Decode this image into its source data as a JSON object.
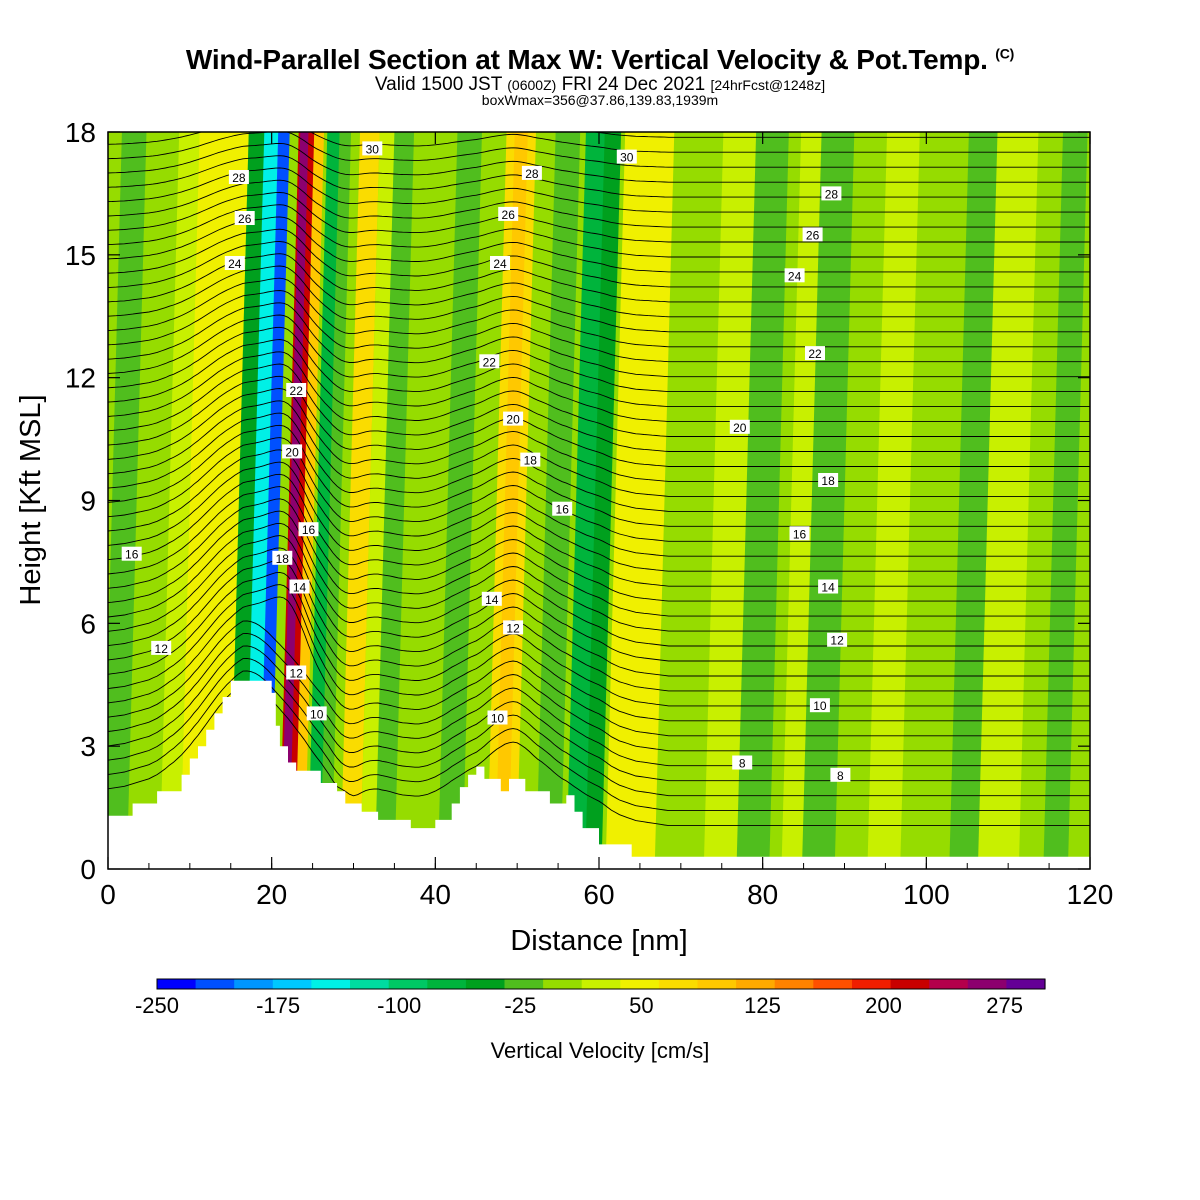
{
  "title": "Wind-Parallel Section at Max W: Vertical Velocity & Pot.Temp.",
  "title_mark": "(C)",
  "subtitle_a": "Valid 1500 JST",
  "subtitle_b": "(0600Z)",
  "subtitle_c": "FRI 24 Dec 2021",
  "subtitle_d": "[24hrFcst@1248z]",
  "subtitle2": "boxWmax=356@37.86,139.83,1939m",
  "chart_data": {
    "type": "heatmap",
    "xlabel": "Distance [nm]",
    "ylabel": "Height [Kft MSL]",
    "xlim": [
      0,
      120
    ],
    "ylim": [
      0,
      18
    ],
    "xticks": [
      "0",
      "20",
      "40",
      "60",
      "80",
      "100",
      "120"
    ],
    "yticks": [
      "0",
      "3",
      "6",
      "9",
      "12",
      "15",
      "18"
    ],
    "colorbar": {
      "label": "Vertical Velocity [cm/s]",
      "ticks": [
        "-250",
        "-175",
        "-100",
        "-25",
        "50",
        "125",
        "200",
        "275"
      ],
      "min": -250,
      "max": 300,
      "step": 25,
      "colors": [
        "#0000ff",
        "#0050ff",
        "#0096ff",
        "#00c8ff",
        "#00f0e6",
        "#00dca0",
        "#00c864",
        "#00b43c",
        "#00a01e",
        "#50be1e",
        "#96dc00",
        "#c8f000",
        "#f0f000",
        "#fadc00",
        "#ffc800",
        "#ffaa00",
        "#ff8200",
        "#ff5000",
        "#f01e00",
        "#c80000",
        "#b4004b",
        "#8c006e",
        "#640096"
      ]
    },
    "background_value": 0,
    "terrain_kft": [
      [
        0,
        1.3
      ],
      [
        3,
        1.3
      ],
      [
        3,
        1.6
      ],
      [
        6,
        1.6
      ],
      [
        6,
        1.9
      ],
      [
        9,
        1.9
      ],
      [
        9,
        2.3
      ],
      [
        10,
        2.3
      ],
      [
        10,
        2.7
      ],
      [
        11,
        2.7
      ],
      [
        11,
        3.0
      ],
      [
        12,
        3.0
      ],
      [
        12,
        3.4
      ],
      [
        13,
        3.4
      ],
      [
        13,
        3.8
      ],
      [
        14,
        3.8
      ],
      [
        14,
        4.2
      ],
      [
        15,
        4.2
      ],
      [
        15,
        4.6
      ],
      [
        18,
        4.6
      ],
      [
        18,
        4.6
      ],
      [
        20,
        4.6
      ],
      [
        20,
        4.3
      ],
      [
        20.5,
        4.3
      ],
      [
        20.5,
        3.5
      ],
      [
        21,
        3.5
      ],
      [
        21,
        3.0
      ],
      [
        22,
        3.0
      ],
      [
        22,
        2.6
      ],
      [
        23,
        2.6
      ],
      [
        23,
        2.4
      ],
      [
        26,
        2.4
      ],
      [
        26,
        2.1
      ],
      [
        28,
        2.1
      ],
      [
        28,
        1.9
      ],
      [
        29,
        1.9
      ],
      [
        29,
        1.6
      ],
      [
        31,
        1.6
      ],
      [
        31,
        1.4
      ],
      [
        33,
        1.4
      ],
      [
        33,
        1.2
      ],
      [
        37,
        1.2
      ],
      [
        37,
        1.0
      ],
      [
        40,
        1.0
      ],
      [
        40,
        1.2
      ],
      [
        42,
        1.2
      ],
      [
        42,
        1.6
      ],
      [
        43,
        1.6
      ],
      [
        43,
        2.0
      ],
      [
        44,
        2.0
      ],
      [
        44,
        2.3
      ],
      [
        45,
        2.3
      ],
      [
        45,
        2.5
      ],
      [
        46,
        2.5
      ],
      [
        46,
        2.2
      ],
      [
        48,
        2.2
      ],
      [
        48,
        1.9
      ],
      [
        49,
        1.9
      ],
      [
        49,
        2.2
      ],
      [
        51,
        2.2
      ],
      [
        51,
        1.9
      ],
      [
        54,
        1.9
      ],
      [
        54,
        1.6
      ],
      [
        56,
        1.6
      ],
      [
        56,
        1.8
      ],
      [
        57,
        1.8
      ],
      [
        57,
        1.4
      ],
      [
        58,
        1.4
      ],
      [
        58,
        1.0
      ],
      [
        60,
        1.0
      ],
      [
        60,
        0.6
      ],
      [
        64,
        0.6
      ],
      [
        64,
        0.3
      ],
      [
        120,
        0.3
      ]
    ],
    "bands": [
      {
        "x": 2,
        "half_width": 1.5,
        "value": -25
      },
      {
        "x": 10,
        "half_width": 2.5,
        "value": 25
      },
      {
        "x": 13,
        "half_width": 3,
        "value": 50
      },
      {
        "x": 17.5,
        "half_width": 1.5,
        "value": -50
      },
      {
        "x": 19.3,
        "half_width": 1.4,
        "value": -150
      },
      {
        "x": 20.3,
        "half_width": 0.7,
        "value": -225
      },
      {
        "x": 23.3,
        "half_width": 1.2,
        "value": 225
      },
      {
        "x": 22.8,
        "half_width": 0.5,
        "value": 275
      },
      {
        "x": 24.6,
        "half_width": 0.6,
        "value": 100
      },
      {
        "x": 26.4,
        "half_width": 0.8,
        "value": -75
      },
      {
        "x": 27.8,
        "half_width": 0.7,
        "value": -25
      },
      {
        "x": 30.8,
        "half_width": 1.2,
        "value": 75
      },
      {
        "x": 33,
        "half_width": 1,
        "value": 25
      },
      {
        "x": 35,
        "half_width": 1.2,
        "value": -25
      },
      {
        "x": 43,
        "half_width": 1.5,
        "value": -25
      },
      {
        "x": 49.3,
        "half_width": 1.8,
        "value": 75
      },
      {
        "x": 49.3,
        "half_width": 0.8,
        "value": 100
      },
      {
        "x": 55,
        "half_width": 1.5,
        "value": -25
      },
      {
        "x": 58.5,
        "half_width": 1.3,
        "value": -75
      },
      {
        "x": 60.5,
        "half_width": 1,
        "value": -50
      },
      {
        "x": 65,
        "half_width": 3,
        "value": 50
      },
      {
        "x": 77,
        "half_width": 3,
        "value": 25
      },
      {
        "x": 80,
        "half_width": 2,
        "value": -25
      },
      {
        "x": 86,
        "half_width": 2.5,
        "value": 25
      },
      {
        "x": 88,
        "half_width": 2,
        "value": -25
      },
      {
        "x": 96,
        "half_width": 2,
        "value": 25
      },
      {
        "x": 106,
        "half_width": 2,
        "value": -25
      },
      {
        "x": 110,
        "half_width": 2.5,
        "value": 25
      },
      {
        "x": 117,
        "half_width": 1.5,
        "value": -25
      }
    ],
    "contour_labels": [
      {
        "text": "30",
        "x": 32.3,
        "y": 17.6
      },
      {
        "text": "30",
        "x": 63.4,
        "y": 17.4
      },
      {
        "text": "28",
        "x": 16,
        "y": 16.9
      },
      {
        "text": "28",
        "x": 51.8,
        "y": 17.0
      },
      {
        "text": "28",
        "x": 88.4,
        "y": 16.5
      },
      {
        "text": "26",
        "x": 16.7,
        "y": 15.9
      },
      {
        "text": "26",
        "x": 48.9,
        "y": 16.0
      },
      {
        "text": "26",
        "x": 86.1,
        "y": 15.5
      },
      {
        "text": "24",
        "x": 15.5,
        "y": 14.8
      },
      {
        "text": "24",
        "x": 47.9,
        "y": 14.8
      },
      {
        "text": "24",
        "x": 83.9,
        "y": 14.5
      },
      {
        "text": "22",
        "x": 23,
        "y": 11.7
      },
      {
        "text": "22",
        "x": 46.6,
        "y": 12.4
      },
      {
        "text": "22",
        "x": 86.4,
        "y": 12.6
      },
      {
        "text": "20",
        "x": 22.5,
        "y": 10.2
      },
      {
        "text": "20",
        "x": 49.5,
        "y": 11.0
      },
      {
        "text": "20",
        "x": 77.2,
        "y": 10.8
      },
      {
        "text": "18",
        "x": 51.6,
        "y": 10.0
      },
      {
        "text": "18",
        "x": 88.0,
        "y": 9.5
      },
      {
        "text": "18",
        "x": 21.3,
        "y": 7.6
      },
      {
        "text": "16",
        "x": 24.5,
        "y": 8.3
      },
      {
        "text": "16",
        "x": 2.9,
        "y": 7.7
      },
      {
        "text": "16",
        "x": 55.5,
        "y": 8.8
      },
      {
        "text": "16",
        "x": 84.5,
        "y": 8.2
      },
      {
        "text": "14",
        "x": 23.4,
        "y": 6.9
      },
      {
        "text": "14",
        "x": 46.9,
        "y": 6.6
      },
      {
        "text": "14",
        "x": 88.0,
        "y": 6.9
      },
      {
        "text": "12",
        "x": 6.5,
        "y": 5.4
      },
      {
        "text": "12",
        "x": 23.0,
        "y": 4.8
      },
      {
        "text": "12",
        "x": 49.5,
        "y": 5.9
      },
      {
        "text": "12",
        "x": 89.1,
        "y": 5.6
      },
      {
        "text": "10",
        "x": 25.5,
        "y": 3.8
      },
      {
        "text": "10",
        "x": 47.6,
        "y": 3.7
      },
      {
        "text": "10",
        "x": 87.0,
        "y": 4.0
      },
      {
        "text": "8",
        "x": 77.5,
        "y": 2.6
      },
      {
        "text": "8",
        "x": 89.5,
        "y": 2.3
      }
    ]
  }
}
